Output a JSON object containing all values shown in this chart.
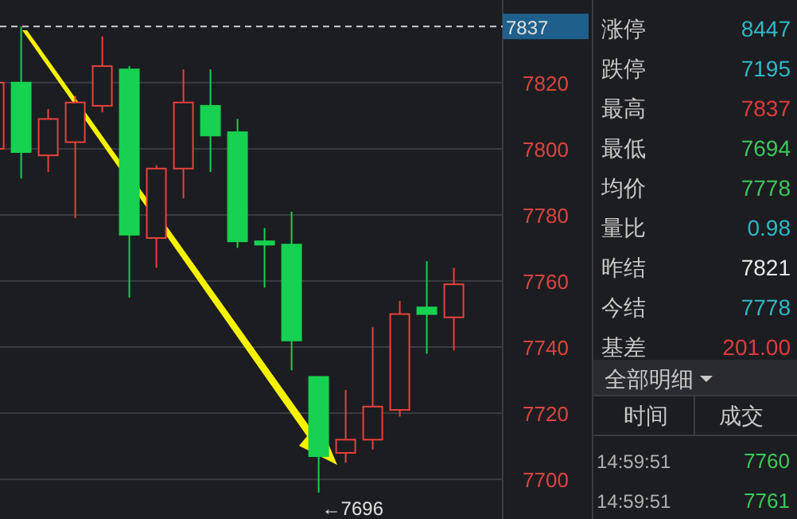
{
  "chart_data": [
    {
      "type": "candlestick",
      "categories": [
        null,
        null,
        null,
        null,
        null,
        null,
        null,
        null,
        null,
        null,
        null,
        null,
        null,
        null,
        null,
        null,
        null,
        null
      ],
      "ohlc": [
        [
          7800,
          7825,
          7790,
          7820
        ],
        [
          7820,
          7837,
          7791,
          7799
        ],
        [
          7798,
          7812,
          7793,
          7809
        ],
        [
          7802,
          7816,
          7779,
          7814
        ],
        [
          7813,
          7834,
          7811,
          7825
        ],
        [
          7824,
          7825,
          7755,
          7774
        ],
        [
          7773,
          7795,
          7764,
          7794
        ],
        [
          7794,
          7824,
          7785,
          7814
        ],
        [
          7813,
          7824,
          7793,
          7804
        ],
        [
          7805,
          7809,
          7770,
          7772
        ],
        [
          7772,
          7776,
          7758,
          7771
        ],
        [
          7771,
          7781,
          7733,
          7742
        ],
        [
          7731,
          7731,
          7696,
          7707
        ],
        [
          7708,
          7727,
          7705,
          7712
        ],
        [
          7712,
          7746,
          7709,
          7722
        ],
        [
          7721,
          7754,
          7719,
          7750
        ],
        [
          7752,
          7766,
          7738,
          7750
        ],
        [
          7749,
          7764,
          7739,
          7759
        ]
      ],
      "colors": [
        "#e8413c",
        "#17d150",
        "#e8413c",
        "#e8413c",
        "#e8413c",
        "#17d150",
        "#e8413c",
        "#e8413c",
        "#17d150",
        "#17d150",
        "#17d150",
        "#17d150",
        "#17d150",
        "#e8413c",
        "#e8413c",
        "#e8413c",
        "#17d150",
        "#e8413c"
      ],
      "ylim": [
        7688,
        7845
      ],
      "yticks": [
        7700,
        7720,
        7740,
        7760,
        7780,
        7800,
        7820
      ],
      "grid": "y",
      "ref_lines": [
        {
          "axis": "y",
          "value": 7837,
          "label": "7837",
          "color": "#d0d0d0",
          "line_style": "dashed"
        }
      ],
      "annotations": [
        "←7696"
      ]
    },
    {
      "type": "other",
      "categories": [
        "涨停",
        "跌停",
        "最高",
        "最低",
        "均价",
        "量比",
        "昨结",
        "今结",
        "基差"
      ],
      "value_labels": [
        "8447",
        "7195",
        "7837",
        "7694",
        "7778",
        "0.98",
        "7821",
        "7778",
        "201.00"
      ],
      "colors": [
        "#2fb8c8",
        "#2fb8c8",
        "#e03c3c",
        "#3cc85a",
        "#3cc85a",
        "#2fb8c8",
        "#e8e8e8",
        "#2fb8c8",
        "#e03c3c"
      ],
      "annotations": [
        "全部明细",
        "时间",
        "成交",
        "14:59:51",
        "7760",
        "14:59:51",
        "7761"
      ]
    }
  ]
}
